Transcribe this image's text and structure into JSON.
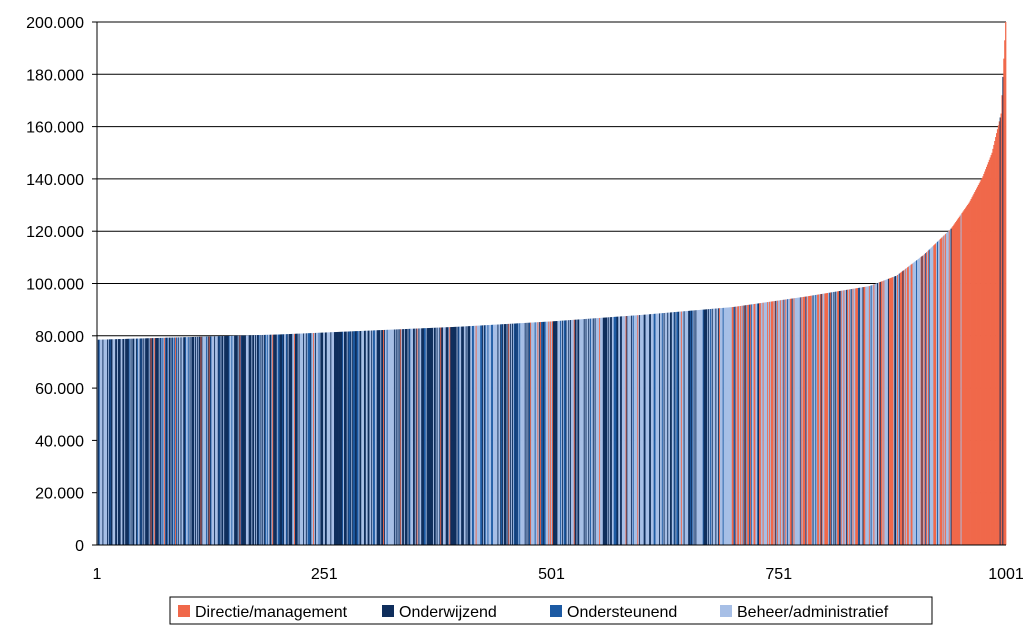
{
  "chart_data": {
    "type": "bar",
    "title": "",
    "xlabel": "",
    "ylabel": "",
    "ylim": [
      0,
      200000
    ],
    "xlim": [
      1,
      1001
    ],
    "y_ticks": [
      0,
      20000,
      40000,
      60000,
      80000,
      100000,
      120000,
      140000,
      160000,
      180000,
      200000
    ],
    "y_tick_labels": [
      "0",
      "20.000",
      "40.000",
      "60.000",
      "80.000",
      "100.000",
      "120.000",
      "140.000",
      "160.000",
      "180.000",
      "200.000"
    ],
    "x_ticks": [
      1,
      251,
      501,
      751,
      1001
    ],
    "x_tick_labels": [
      "1",
      "251",
      "501",
      "751",
      "1001"
    ],
    "grid": "horizontal",
    "legend_position": "bottom",
    "n_bars": 1001,
    "sorted_ascending": true,
    "series": [
      {
        "name": "Directie/management",
        "color": "#f0684a"
      },
      {
        "name": "Onderwijzend",
        "color": "#0f2e5c"
      },
      {
        "name": "Ondersteunend",
        "color": "#1c5aa3"
      },
      {
        "name": "Beheer/administratief",
        "color": "#a7bfe6"
      }
    ],
    "value_profile": [
      {
        "x": 1,
        "y": 78500
      },
      {
        "x": 101,
        "y": 79500
      },
      {
        "x": 201,
        "y": 80500
      },
      {
        "x": 301,
        "y": 82000
      },
      {
        "x": 401,
        "y": 83500
      },
      {
        "x": 501,
        "y": 85500
      },
      {
        "x": 601,
        "y": 88000
      },
      {
        "x": 701,
        "y": 91000
      },
      {
        "x": 781,
        "y": 95000
      },
      {
        "x": 851,
        "y": 99000
      },
      {
        "x": 881,
        "y": 103000
      },
      {
        "x": 911,
        "y": 111000
      },
      {
        "x": 941,
        "y": 121000
      },
      {
        "x": 961,
        "y": 131000
      },
      {
        "x": 976,
        "y": 141000
      },
      {
        "x": 986,
        "y": 150000
      },
      {
        "x": 996,
        "y": 165000
      },
      {
        "x": 1001,
        "y": 200000
      }
    ],
    "category_mix": [
      {
        "x_from": 1,
        "x_to": 400,
        "weights": [
          0.04,
          0.46,
          0.14,
          0.36
        ]
      },
      {
        "x_from": 401,
        "x_to": 700,
        "weights": [
          0.06,
          0.3,
          0.12,
          0.52
        ]
      },
      {
        "x_from": 701,
        "x_to": 880,
        "weights": [
          0.3,
          0.14,
          0.08,
          0.48
        ]
      },
      {
        "x_from": 881,
        "x_to": 940,
        "weights": [
          0.5,
          0.06,
          0.04,
          0.4
        ]
      },
      {
        "x_from": 941,
        "x_to": 1001,
        "weights": [
          0.92,
          0.03,
          0.0,
          0.05
        ]
      }
    ]
  }
}
